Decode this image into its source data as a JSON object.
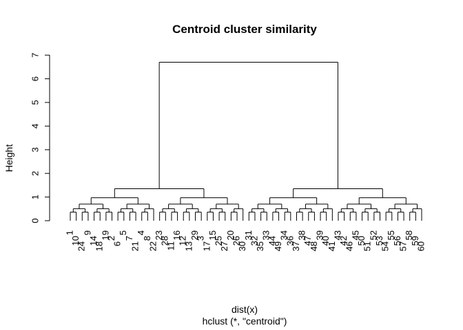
{
  "chart_data": {
    "type": "dendrogram",
    "title": "Centroid cluster similarity",
    "ylabel": "Height",
    "xlabel": "dist(x)",
    "sub": "hclust (*, \"centroid\")",
    "ylim": [
      0,
      7
    ],
    "yticks": [
      "0",
      "1",
      "2",
      "3",
      "4",
      "5",
      "6",
      "7"
    ],
    "leaves": [
      "1",
      "10",
      "24",
      "9",
      "14",
      "18",
      "19",
      "2",
      "6",
      "5",
      "7",
      "21",
      "4",
      "8",
      "22",
      "23",
      "28",
      "11",
      "16",
      "12",
      "13",
      "29",
      "3",
      "17",
      "15",
      "25",
      "27",
      "20",
      "26",
      "30",
      "31",
      "32",
      "35",
      "33",
      "44",
      "49",
      "34",
      "36",
      "37",
      "38",
      "47",
      "48",
      "39",
      "40",
      "41",
      "43",
      "42",
      "46",
      "45",
      "50",
      "51",
      "52",
      "53",
      "54",
      "55",
      "56",
      "57",
      "58",
      "59",
      "60"
    ],
    "root_height": 6.7
  }
}
